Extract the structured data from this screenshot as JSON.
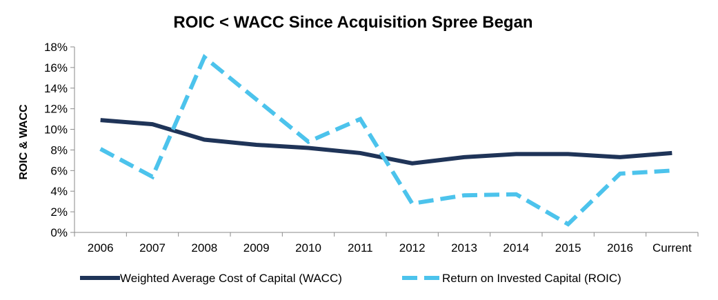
{
  "chart_data": {
    "type": "line",
    "title": "ROIC < WACC  Since Acquisition Spree Began",
    "xlabel": "",
    "ylabel": "ROIC & WACC",
    "categories": [
      "2006",
      "2007",
      "2008",
      "2009",
      "2010",
      "2011",
      "2012",
      "2013",
      "2014",
      "2015",
      "2016",
      "Current"
    ],
    "yticks": [
      "0%",
      "2%",
      "4%",
      "6%",
      "8%",
      "10%",
      "12%",
      "14%",
      "16%",
      "18%"
    ],
    "ylim": [
      0,
      18
    ],
    "grid": false,
    "legend_position": "bottom",
    "series": [
      {
        "name": "Weighted Average Cost of Capital (WACC)",
        "style": "solid",
        "color": "#1f3458",
        "values": [
          10.9,
          10.5,
          9.0,
          8.5,
          8.2,
          7.7,
          6.7,
          7.3,
          7.6,
          7.6,
          7.3,
          7.7
        ]
      },
      {
        "name": "Return on Invested Capital (ROIC)",
        "style": "dashed",
        "color": "#4cc3ec",
        "values": [
          8.1,
          5.4,
          17.0,
          12.9,
          8.8,
          11.0,
          2.8,
          3.6,
          3.7,
          0.8,
          5.7,
          6.0
        ]
      }
    ]
  }
}
